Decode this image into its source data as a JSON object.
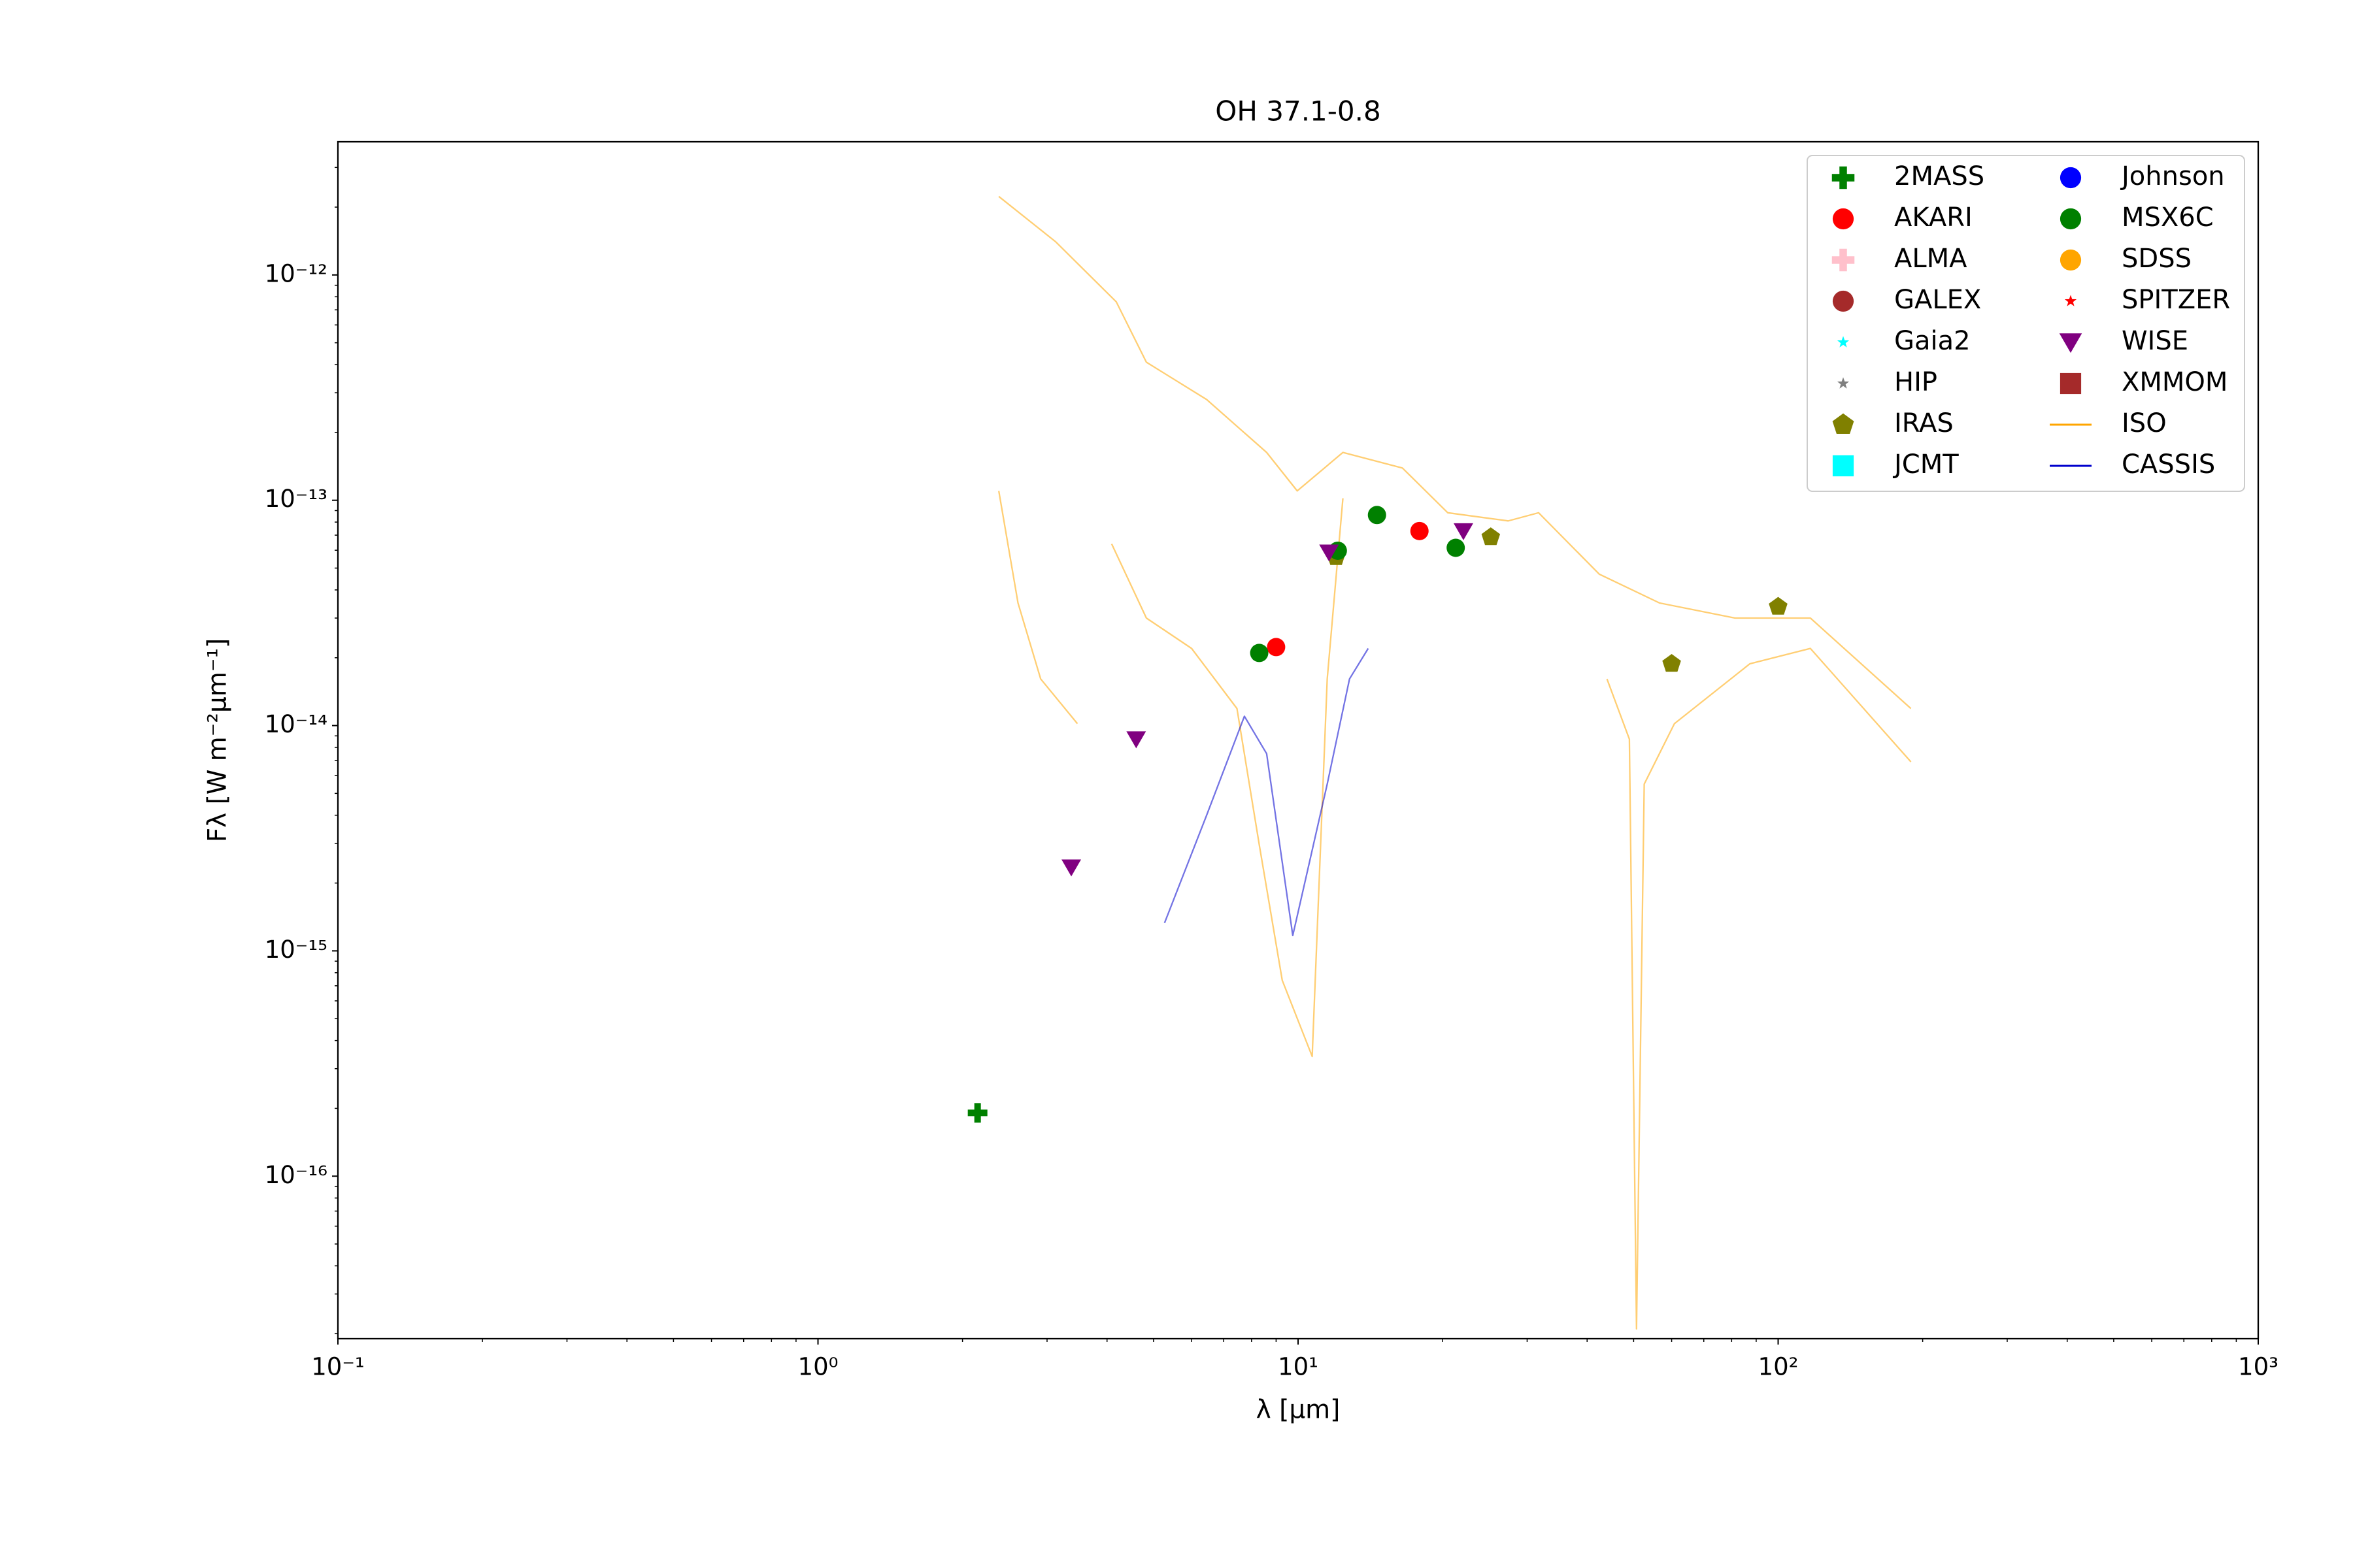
{
  "chart_data": {
    "type": "scatter",
    "title": "OH 37.1-0.8",
    "xlabel": "λ [μm]",
    "ylabel": "Fλ [W m⁻²μm⁻¹]",
    "xscale": "log",
    "yscale": "log",
    "xlim": [
      0.1,
      1000
    ],
    "ylim": [
      1.9e-17,
      3.9e-12
    ],
    "xticks": [
      {
        "value": 0.1,
        "label": "10⁻¹"
      },
      {
        "value": 1,
        "label": "10⁰"
      },
      {
        "value": 10,
        "label": "10¹"
      },
      {
        "value": 100,
        "label": "10²"
      },
      {
        "value": 1000,
        "label": "10³"
      }
    ],
    "yticks": [
      {
        "value": 1e-16,
        "label": "10⁻¹⁶"
      },
      {
        "value": 1e-15,
        "label": "10⁻¹⁵"
      },
      {
        "value": 1e-14,
        "label": "10⁻¹⁴"
      },
      {
        "value": 1e-13,
        "label": "10⁻¹³"
      },
      {
        "value": 1e-12,
        "label": "10⁻¹²"
      }
    ],
    "legend": "upper right",
    "series": [
      {
        "name": "2MASS",
        "color": "#008000",
        "marker": "plus",
        "x": [
          2.15
        ],
        "values": [
          1.91e-16
        ]
      },
      {
        "name": "AKARI",
        "color": "#ff0000",
        "marker": "circle",
        "x": [
          9.0,
          17.9
        ],
        "values": [
          2.23e-14,
          7.3e-14
        ]
      },
      {
        "name": "ALMA",
        "color": "#ffc0cb",
        "marker": "plus",
        "x": [],
        "values": []
      },
      {
        "name": "GALEX",
        "color": "#a52a2a",
        "marker": "circle",
        "x": [],
        "values": []
      },
      {
        "name": "Gaia2",
        "color": "#00ffff",
        "marker": "star",
        "x": [],
        "values": []
      },
      {
        "name": "HIP",
        "color": "#808080",
        "marker": "star",
        "x": [],
        "values": []
      },
      {
        "name": "IRAS",
        "color": "#808000",
        "marker": "pentagon",
        "x": [
          12,
          25.2,
          60,
          100
        ],
        "values": [
          5.6e-14,
          6.86e-14,
          1.88e-14,
          3.37e-14
        ]
      },
      {
        "name": "JCMT",
        "color": "#00ffff",
        "marker": "square",
        "x": [],
        "values": []
      },
      {
        "name": "Johnson",
        "color": "#0000ff",
        "marker": "circle",
        "x": [],
        "values": []
      },
      {
        "name": "MSX6C",
        "color": "#008000",
        "marker": "circle",
        "x": [
          8.3,
          12.1,
          14.6,
          21.3
        ],
        "values": [
          2.1e-14,
          5.97e-14,
          8.6e-14,
          6.15e-14
        ]
      },
      {
        "name": "SDSS",
        "color": "#ffa500",
        "marker": "circle",
        "x": [],
        "values": []
      },
      {
        "name": "SPITZER",
        "color": "#ff0000",
        "marker": "star",
        "x": [],
        "values": []
      },
      {
        "name": "WISE",
        "color": "#800080",
        "marker": "triangle-down",
        "x": [
          3.37,
          4.6,
          11.6,
          22.1
        ],
        "values": [
          2.35e-15,
          8.7e-15,
          5.87e-14,
          7.3e-14
        ]
      },
      {
        "name": "XMMOM",
        "color": "#a52a2a",
        "marker": "square",
        "x": [],
        "values": []
      },
      {
        "name": "ISO",
        "color": "#ffa500",
        "marker": "line",
        "x": [
          2.38,
          3.13,
          4.18,
          4.83,
          6.45,
          8.6,
          9.96,
          12.4,
          16.5,
          20.5,
          27.4,
          31.7,
          42.4,
          56.6,
          81.3,
          116.7,
          189,
          null,
          2.38,
          2.61,
          2.91,
          3.47,
          null,
          4.09,
          4.83,
          6.0,
          7.46,
          8.3,
          9.27,
          10.7,
          11.5,
          12.4,
          null,
          44,
          49,
          50.7,
          52.6,
          60.8,
          87.3,
          116.7,
          189
        ],
        "values": [
          2.23e-12,
          1.4e-12,
          7.6e-13,
          4.1e-13,
          2.8e-13,
          1.63e-13,
          1.1e-13,
          1.63e-13,
          1.39e-13,
          8.8e-14,
          8.1e-14,
          8.8e-14,
          4.7e-14,
          3.5e-14,
          3e-14,
          3e-14,
          1.19e-14,
          null,
          1.1e-13,
          3.5e-14,
          1.61e-14,
          1.02e-14,
          null,
          6.4e-14,
          3e-14,
          2.2e-14,
          1.19e-14,
          2.96e-15,
          7.4e-16,
          3.4e-16,
          1.61e-14,
          1.02e-13,
          null,
          1.61e-14,
          8.7e-15,
          2.1e-17,
          5.5e-15,
          1.02e-14,
          1.88e-14,
          2.2e-14,
          6.9e-15
        ]
      },
      {
        "name": "CASSIS",
        "color": "#0000cd",
        "marker": "line",
        "x": [
          5.27,
          6.45,
          7.73,
          8.6,
          9.75,
          11.5,
          12.8,
          14.0
        ],
        "values": [
          1.33e-15,
          4e-15,
          1.1e-14,
          7.5e-15,
          1.17e-15,
          5.5e-15,
          1.61e-14,
          2.2e-14
        ]
      }
    ]
  }
}
